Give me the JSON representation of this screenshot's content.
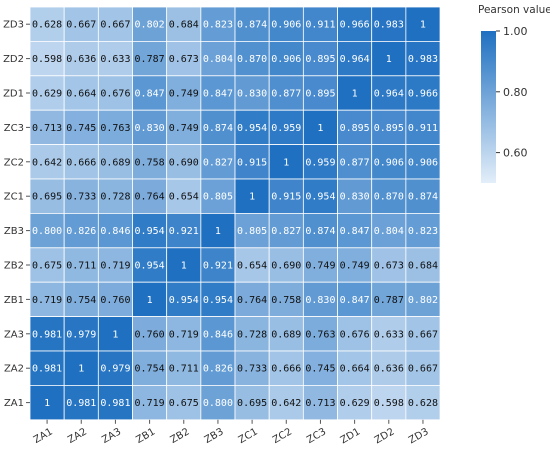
{
  "chart_data": {
    "type": "heatmap",
    "title": "",
    "xlabel": "",
    "ylabel": "",
    "x_categories": [
      "ZA1",
      "ZA2",
      "ZA3",
      "ZB1",
      "ZB2",
      "ZB3",
      "ZC1",
      "ZC2",
      "ZC3",
      "ZD1",
      "ZD2",
      "ZD3"
    ],
    "y_categories": [
      "ZD3",
      "ZD2",
      "ZD1",
      "ZC3",
      "ZC2",
      "ZC1",
      "ZB3",
      "ZB2",
      "ZB1",
      "ZA3",
      "ZA2",
      "ZA1"
    ],
    "values": [
      [
        "0.628",
        "0.667",
        "0.667",
        "0.802",
        "0.684",
        "0.823",
        "0.874",
        "0.906",
        "0.911",
        "0.966",
        "0.983",
        "1"
      ],
      [
        "0.598",
        "0.636",
        "0.633",
        "0.787",
        "0.673",
        "0.804",
        "0.870",
        "0.906",
        "0.895",
        "0.964",
        "1",
        "0.983"
      ],
      [
        "0.629",
        "0.664",
        "0.676",
        "0.847",
        "0.749",
        "0.847",
        "0.830",
        "0.877",
        "0.895",
        "1",
        "0.964",
        "0.966"
      ],
      [
        "0.713",
        "0.745",
        "0.763",
        "0.830",
        "0.749",
        "0.874",
        "0.954",
        "0.959",
        "1",
        "0.895",
        "0.895",
        "0.911"
      ],
      [
        "0.642",
        "0.666",
        "0.689",
        "0.758",
        "0.690",
        "0.827",
        "0.915",
        "1",
        "0.959",
        "0.877",
        "0.906",
        "0.906"
      ],
      [
        "0.695",
        "0.733",
        "0.728",
        "0.764",
        "0.654",
        "0.805",
        "1",
        "0.915",
        "0.954",
        "0.830",
        "0.870",
        "0.874"
      ],
      [
        "0.800",
        "0.826",
        "0.846",
        "0.954",
        "0.921",
        "1",
        "0.805",
        "0.827",
        "0.874",
        "0.847",
        "0.804",
        "0.823"
      ],
      [
        "0.675",
        "0.711",
        "0.719",
        "0.954",
        "1",
        "0.921",
        "0.654",
        "0.690",
        "0.749",
        "0.749",
        "0.673",
        "0.684"
      ],
      [
        "0.719",
        "0.754",
        "0.760",
        "1",
        "0.954",
        "0.954",
        "0.764",
        "0.758",
        "0.830",
        "0.847",
        "0.787",
        "0.802"
      ],
      [
        "0.981",
        "0.979",
        "1",
        "0.760",
        "0.719",
        "0.846",
        "0.728",
        "0.689",
        "0.763",
        "0.676",
        "0.633",
        "0.667"
      ],
      [
        "0.981",
        "1",
        "0.979",
        "0.754",
        "0.711",
        "0.826",
        "0.733",
        "0.666",
        "0.745",
        "0.664",
        "0.636",
        "0.667"
      ],
      [
        "1",
        "0.981",
        "0.981",
        "0.719",
        "0.675",
        "0.800",
        "0.695",
        "0.642",
        "0.713",
        "0.629",
        "0.598",
        "0.628"
      ]
    ],
    "colorbar": {
      "title": "Pearson value",
      "range": [
        0.5,
        1.0
      ],
      "ticks": [
        "1.00",
        "0.80",
        "0.60"
      ],
      "tick_values": [
        1.0,
        0.8,
        0.6
      ],
      "color_low": "#e3eef9",
      "color_high": "#1f70c1"
    },
    "grid": true,
    "legend_position": "top-right"
  }
}
